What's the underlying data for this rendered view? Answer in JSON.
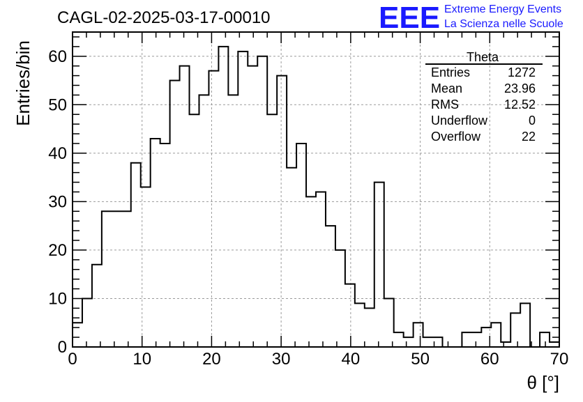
{
  "chart_data": {
    "type": "bar",
    "title": "CAGL-02-2025-03-17-00010",
    "xlabel": "θ [°]",
    "ylabel": "Entries/bin",
    "xlim": [
      0,
      70
    ],
    "ylim": [
      0,
      65
    ],
    "grid": true,
    "bin_width": 1.4,
    "x_ticks": [
      0,
      10,
      20,
      30,
      40,
      50,
      60,
      70
    ],
    "y_ticks": [
      0,
      10,
      20,
      30,
      40,
      50,
      60
    ],
    "values": [
      5,
      10,
      17,
      28,
      28,
      28,
      38,
      33,
      43,
      42,
      55,
      58,
      48,
      52,
      57,
      62,
      52,
      61,
      58,
      60,
      48,
      56,
      37,
      42,
      31,
      32,
      25,
      20,
      13,
      9,
      8,
      34,
      10,
      3,
      2,
      5,
      2,
      2,
      0,
      0,
      3,
      3,
      4,
      5,
      1,
      7,
      9,
      0,
      3,
      1
    ],
    "stats_box": {
      "title": "Theta",
      "rows": [
        {
          "label": "Entries",
          "value": "1272"
        },
        {
          "label": "Mean",
          "value": "23.96"
        },
        {
          "label": "RMS",
          "value": "12.52"
        },
        {
          "label": "Underflow",
          "value": "0"
        },
        {
          "label": "Overflow",
          "value": "22"
        }
      ]
    },
    "logo": {
      "mark": "EEE",
      "line1": "Extreme Energy Events",
      "line2": "La Scienza nelle Scuole",
      "color": "#1a1aff"
    },
    "colors": {
      "line": "#000000",
      "grid": "#9a9a9a"
    }
  }
}
